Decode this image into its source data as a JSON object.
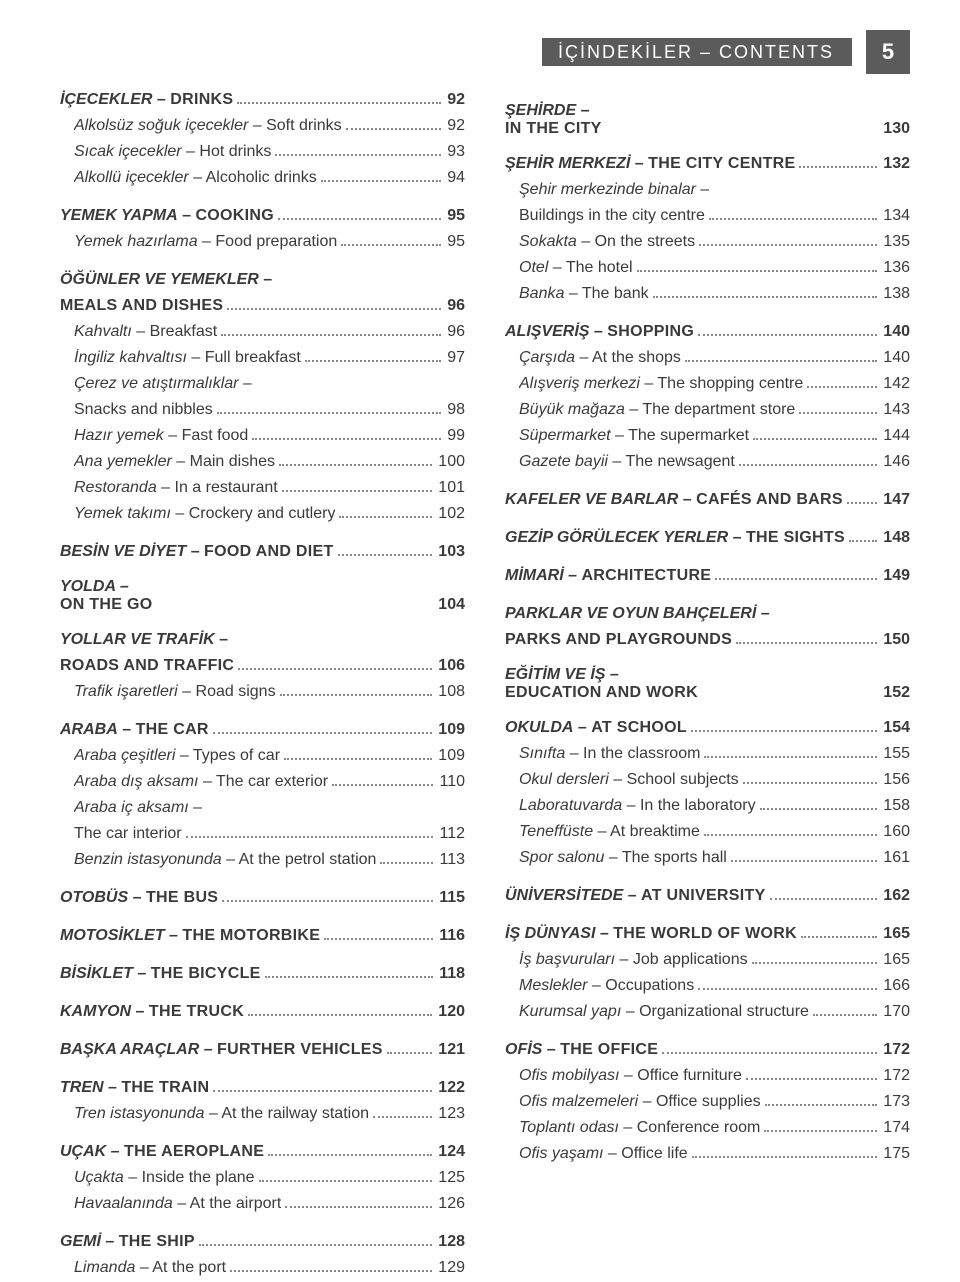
{
  "header": {
    "title": "İÇİNDEKİLER – CONTENTS",
    "page": "5"
  },
  "left": [
    {
      "type": "entry",
      "cls": "bold caps",
      "tr": "İÇECEKLER",
      "en": "DRINKS",
      "pg": "92"
    },
    {
      "type": "entry",
      "cls": "sub",
      "tr": "Alkolsüz soğuk içecekler",
      "en": "Soft drinks",
      "pg": "92"
    },
    {
      "type": "entry",
      "cls": "sub",
      "tr": "Sıcak içecekler",
      "en": "Hot drinks",
      "pg": "93"
    },
    {
      "type": "entry",
      "cls": "sub",
      "tr": "Alkollü içecekler",
      "en": "Alcoholic drinks",
      "pg": "94"
    },
    {
      "type": "entry",
      "cls": "bold caps mt",
      "tr": "YEMEK YAPMA",
      "en": "COOKING",
      "pg": "95"
    },
    {
      "type": "entry",
      "cls": "sub",
      "tr": "Yemek hazırlama",
      "en": "Food preparation",
      "pg": "95"
    },
    {
      "type": "wrap",
      "cls": "bold caps mt",
      "l1_tr": "ÖĞÜNLER VE YEMEKLER",
      "l2_en": "MEALS AND DISHES",
      "pg": "96"
    },
    {
      "type": "entry",
      "cls": "sub",
      "tr": "Kahvaltı",
      "en": "Breakfast",
      "pg": "96"
    },
    {
      "type": "entry",
      "cls": "sub",
      "tr": "İngiliz kahvaltısı",
      "en": "Full breakfast",
      "pg": "97"
    },
    {
      "type": "wrap",
      "cls": "sub",
      "l1_tr": "Çerez ve atıştırmalıklar",
      "l2_en": "Snacks and nibbles",
      "pg": "98"
    },
    {
      "type": "entry",
      "cls": "sub",
      "tr": "Hazır yemek",
      "en": "Fast food",
      "pg": "99"
    },
    {
      "type": "entry",
      "cls": "sub",
      "tr": "Ana yemekler",
      "en": "Main dishes",
      "pg": "100"
    },
    {
      "type": "entry",
      "cls": "sub",
      "tr": "Restoranda",
      "en": "In a restaurant",
      "pg": "101"
    },
    {
      "type": "entry",
      "cls": "sub",
      "tr": "Yemek takımı",
      "en": "Crockery and cutlery",
      "pg": "102"
    },
    {
      "type": "entry",
      "cls": "bold caps mt",
      "tr": "BESİN VE DİYET",
      "en": "FOOD AND DIET",
      "pg": "103"
    },
    {
      "type": "head",
      "tr": "YOLDA –",
      "en": "ON THE GO",
      "pg": "104"
    },
    {
      "type": "wrap",
      "cls": "bold caps mt",
      "l1_tr": "YOLLAR VE TRAFİK",
      "l2_en": "ROADS AND TRAFFIC",
      "pg": "106"
    },
    {
      "type": "entry",
      "cls": "sub",
      "tr": "Trafik işaretleri",
      "en": "Road signs",
      "pg": "108"
    },
    {
      "type": "entry",
      "cls": "bold caps mt",
      "tr": "ARABA",
      "en": "THE CAR",
      "pg": "109"
    },
    {
      "type": "entry",
      "cls": "sub",
      "tr": "Araba çeşitleri",
      "en": "Types of car",
      "pg": "109"
    },
    {
      "type": "entry",
      "cls": "sub",
      "tr": "Araba dış aksamı",
      "en": "The car exterior",
      "pg": "110"
    },
    {
      "type": "wrap",
      "cls": "sub",
      "l1_tr": "Araba iç aksamı",
      "l2_en": "The car interior",
      "pg": "112"
    },
    {
      "type": "entry",
      "cls": "sub",
      "tr": "Benzin istasyonunda",
      "en": "At the petrol station",
      "pg": "113"
    },
    {
      "type": "entry",
      "cls": "bold caps mt",
      "tr": "OTOBÜS",
      "en": "THE BUS",
      "pg": "115"
    },
    {
      "type": "entry",
      "cls": "bold caps mt",
      "tr": "MOTOSİKLET",
      "en": "THE MOTORBIKE",
      "pg": "116"
    },
    {
      "type": "entry",
      "cls": "bold caps mt",
      "tr": "BİSİKLET",
      "en": "THE BICYCLE",
      "pg": "118"
    },
    {
      "type": "entry",
      "cls": "bold caps mt",
      "tr": "KAMYON",
      "en": "THE TRUCK",
      "pg": "120"
    },
    {
      "type": "entry",
      "cls": "bold caps mt",
      "tr": "BAŞKA ARAÇLAR",
      "en": "FURTHER VEHICLES",
      "pg": "121"
    },
    {
      "type": "entry",
      "cls": "bold caps mt",
      "tr": "TREN",
      "en": "THE TRAIN",
      "pg": "122"
    },
    {
      "type": "entry",
      "cls": "sub",
      "tr": "Tren istasyonunda",
      "en": "At the railway station",
      "pg": "123"
    },
    {
      "type": "entry",
      "cls": "bold caps mt",
      "tr": "UÇAK",
      "en": "THE AEROPLANE",
      "pg": "124"
    },
    {
      "type": "entry",
      "cls": "sub",
      "tr": "Uçakta",
      "en": "Inside the plane",
      "pg": "125"
    },
    {
      "type": "entry",
      "cls": "sub",
      "tr": "Havaalanında",
      "en": "At the airport",
      "pg": "126"
    },
    {
      "type": "entry",
      "cls": "bold caps mt",
      "tr": "GEMİ",
      "en": "THE SHIP",
      "pg": "128"
    },
    {
      "type": "entry",
      "cls": "sub",
      "tr": "Limanda",
      "en": "At the port",
      "pg": "129"
    }
  ],
  "right": [
    {
      "type": "head",
      "tr": "ŞEHİRDE –",
      "en": "IN THE CITY",
      "pg": "130"
    },
    {
      "type": "entry",
      "cls": "bold caps mt",
      "tr": "ŞEHİR MERKEZİ",
      "en": "THE CITY CENTRE",
      "pg": "132"
    },
    {
      "type": "wrap",
      "cls": "sub",
      "l1_tr": "Şehir merkezinde binalar",
      "l2_en": "Buildings in the city centre",
      "pg": "134"
    },
    {
      "type": "entry",
      "cls": "sub",
      "tr": "Sokakta",
      "en": "On the streets",
      "pg": "135"
    },
    {
      "type": "entry",
      "cls": "sub",
      "tr": "Otel",
      "en": "The hotel",
      "pg": "136"
    },
    {
      "type": "entry",
      "cls": "sub",
      "tr": "Banka",
      "en": "The bank",
      "pg": "138"
    },
    {
      "type": "entry",
      "cls": "bold caps mt",
      "tr": "ALIŞVERİŞ",
      "en": "SHOPPING",
      "pg": "140"
    },
    {
      "type": "entry",
      "cls": "sub",
      "tr": "Çarşıda",
      "en": "At the shops",
      "pg": "140"
    },
    {
      "type": "entry",
      "cls": "sub",
      "tr": "Alışveriş merkezi",
      "en": "The shopping centre",
      "pg": "142"
    },
    {
      "type": "entry",
      "cls": "sub",
      "tr": "Büyük mağaza",
      "en": "The department store",
      "pg": "143"
    },
    {
      "type": "entry",
      "cls": "sub",
      "tr": "Süpermarket",
      "en": "The supermarket",
      "pg": "144"
    },
    {
      "type": "entry",
      "cls": "sub",
      "tr": "Gazete bayii",
      "en": "The newsagent",
      "pg": "146"
    },
    {
      "type": "entry",
      "cls": "bold caps mt",
      "tr": "KAFELER VE BARLAR",
      "en": "CAFÉS AND BARS",
      "pg": "147"
    },
    {
      "type": "entry",
      "cls": "bold caps mt",
      "tr": "GEZİP GÖRÜLECEK YERLER",
      "en": "THE SIGHTS",
      "pg": "148"
    },
    {
      "type": "entry",
      "cls": "bold caps mt",
      "tr": "MİMARİ",
      "en": "ARCHITECTURE",
      "pg": "149"
    },
    {
      "type": "wrap",
      "cls": "bold caps mt",
      "l1_tr": "PARKLAR VE OYUN BAHÇELERİ",
      "l2_en": "PARKS AND PLAYGROUNDS",
      "pg": "150"
    },
    {
      "type": "head",
      "tr": "EĞİTİM VE İŞ –",
      "en": "EDUCATION AND WORK",
      "pg": "152"
    },
    {
      "type": "entry",
      "cls": "bold caps mt",
      "tr": "OKULDA",
      "en": "AT SCHOOL",
      "pg": "154"
    },
    {
      "type": "entry",
      "cls": "sub",
      "tr": "Sınıfta",
      "en": "In the classroom",
      "pg": "155"
    },
    {
      "type": "entry",
      "cls": "sub",
      "tr": "Okul dersleri",
      "en": "School subjects",
      "pg": "156"
    },
    {
      "type": "entry",
      "cls": "sub",
      "tr": "Laboratuvarda",
      "en": "In the laboratory",
      "pg": "158"
    },
    {
      "type": "entry",
      "cls": "sub",
      "tr": "Teneffüste",
      "en": "At breaktime",
      "pg": "160"
    },
    {
      "type": "entry",
      "cls": "sub",
      "tr": "Spor salonu",
      "en": "The sports hall",
      "pg": "161"
    },
    {
      "type": "entry",
      "cls": "bold caps mt",
      "tr": "ÜNİVERSİTEDE",
      "en": "AT UNIVERSITY",
      "pg": "162"
    },
    {
      "type": "entry",
      "cls": "bold caps mt",
      "tr": "İŞ DÜNYASI",
      "en": "THE WORLD OF WORK",
      "pg": "165"
    },
    {
      "type": "entry",
      "cls": "sub",
      "tr": "İş başvuruları",
      "en": "Job applications",
      "pg": "165"
    },
    {
      "type": "entry",
      "cls": "sub",
      "tr": "Meslekler",
      "en": "Occupations",
      "pg": "166"
    },
    {
      "type": "entry",
      "cls": "sub",
      "tr": "Kurumsal yapı",
      "en": "Organizational structure",
      "pg": "170"
    },
    {
      "type": "entry",
      "cls": "bold caps mt",
      "tr": "OFİS",
      "en": "THE OFFICE",
      "pg": "172"
    },
    {
      "type": "entry",
      "cls": "sub",
      "tr": "Ofis mobilyası",
      "en": "Office furniture",
      "pg": "172"
    },
    {
      "type": "entry",
      "cls": "sub",
      "tr": "Ofis malzemeleri",
      "en": "Office supplies",
      "pg": "173"
    },
    {
      "type": "entry",
      "cls": "sub",
      "tr": "Toplantı odası",
      "en": "Conference room",
      "pg": "174"
    },
    {
      "type": "entry",
      "cls": "sub",
      "tr": "Ofis yaşamı",
      "en": "Office life",
      "pg": "175"
    }
  ]
}
